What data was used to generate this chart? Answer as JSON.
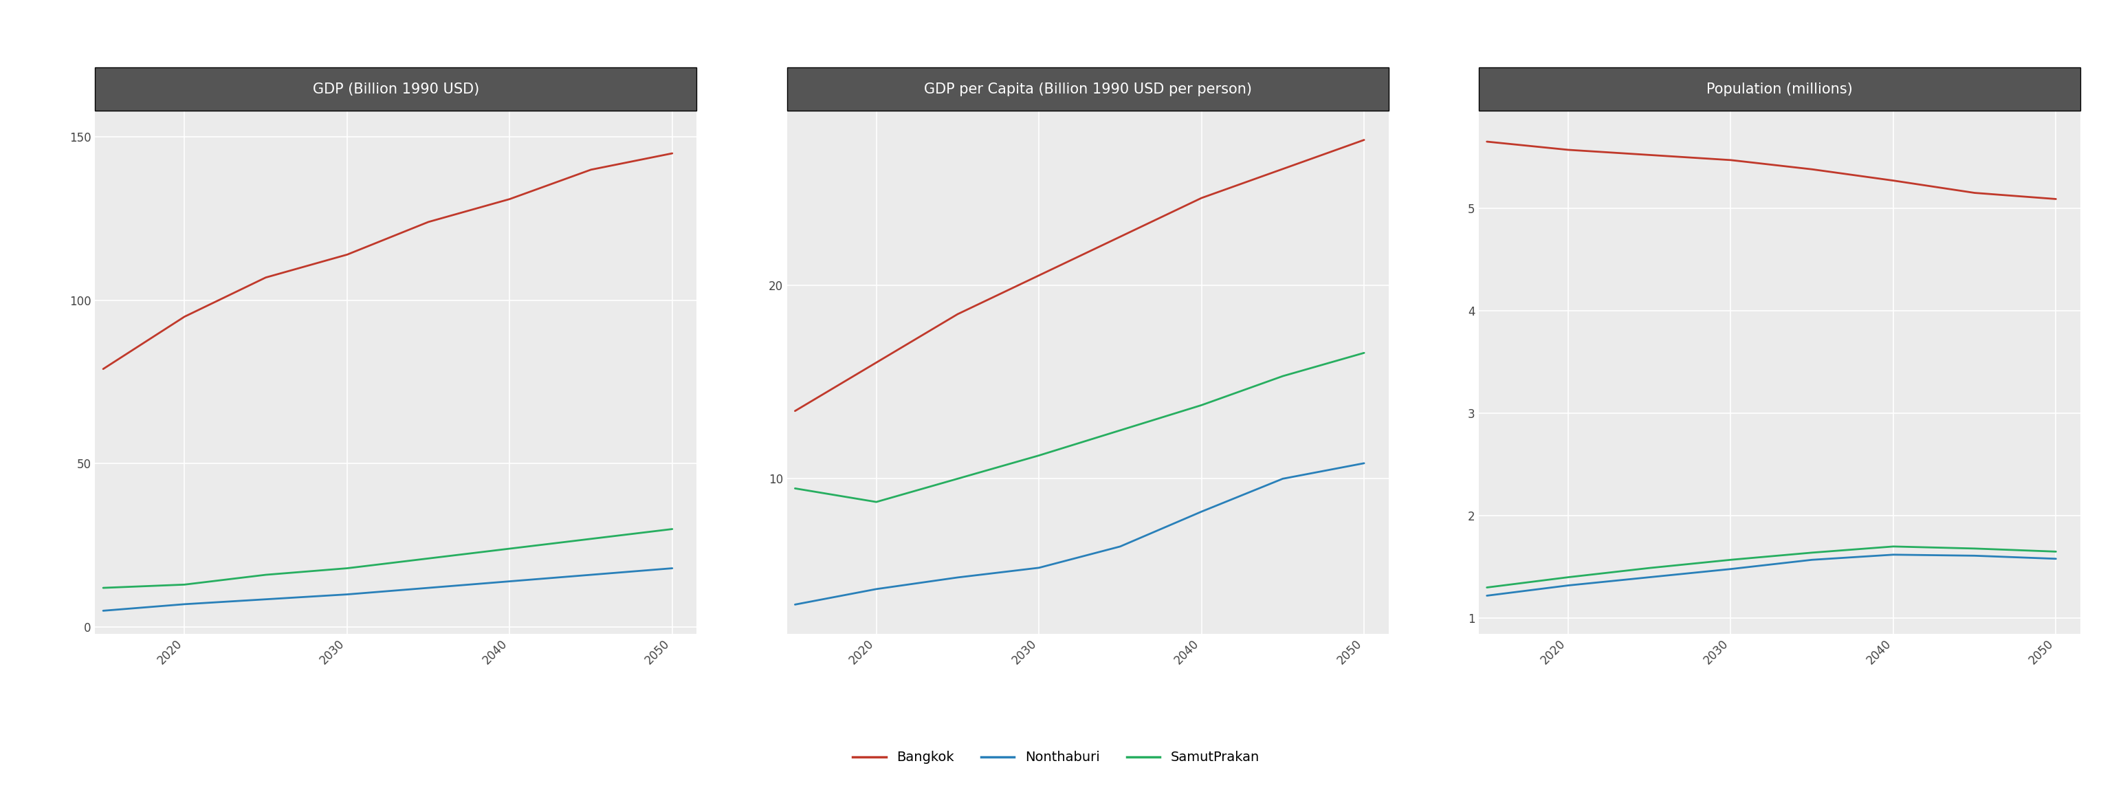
{
  "years": [
    2015,
    2020,
    2025,
    2030,
    2035,
    2040,
    2045,
    2050
  ],
  "gdp": {
    "Bangkok": [
      79,
      95,
      107,
      114,
      124,
      131,
      140,
      145
    ],
    "Nonthaburi": [
      5,
      7,
      8.5,
      10,
      12,
      14,
      16,
      18
    ],
    "SamutPrakan": [
      12,
      13,
      16,
      18,
      21,
      24,
      27,
      30
    ]
  },
  "gdp_capita": {
    "Bangkok": [
      13.5,
      16.0,
      18.5,
      20.5,
      22.5,
      24.5,
      26.0,
      27.5
    ],
    "Nonthaburi": [
      3.5,
      4.3,
      4.9,
      5.4,
      6.5,
      8.3,
      10.0,
      10.8
    ],
    "SamutPrakan": [
      9.5,
      8.8,
      10.0,
      11.2,
      12.5,
      13.8,
      15.3,
      16.5
    ]
  },
  "population": {
    "Bangkok": [
      5.65,
      5.57,
      5.52,
      5.47,
      5.38,
      5.27,
      5.15,
      5.09
    ],
    "Nonthaburi": [
      1.22,
      1.32,
      1.4,
      1.48,
      1.57,
      1.62,
      1.61,
      1.58
    ],
    "SamutPrakan": [
      1.3,
      1.4,
      1.49,
      1.57,
      1.64,
      1.7,
      1.68,
      1.65
    ]
  },
  "titles": [
    "GDP (Billion 1990 USD)",
    "GDP per Capita (Billion 1990 USD per person)",
    "Population (millions)"
  ],
  "colors": {
    "Bangkok": "#c0392b",
    "Nonthaburi": "#2980b9",
    "SamutPrakan": "#27ae60"
  },
  "header_bg": "#555555",
  "header_text": "#ffffff",
  "plot_bg": "#ebebeb",
  "grid_color": "#ffffff",
  "line_width": 2.0,
  "xticks": [
    2020,
    2030,
    2040,
    2050
  ],
  "xlim": [
    2014.5,
    2051.5
  ],
  "yticks_gdp": [
    0,
    50,
    100,
    150
  ],
  "ylim_gdp": [
    -2,
    158
  ],
  "yticks_gdpcap": [
    10,
    20
  ],
  "ylim_gdpcap": [
    2.0,
    29
  ],
  "yticks_pop": [
    1,
    2,
    3,
    4,
    5
  ],
  "ylim_pop": [
    0.85,
    5.95
  ],
  "legend_labels": [
    "Bangkok",
    "Nonthaburi",
    "SamutPrakan"
  ],
  "font_size_title": 15,
  "font_size_tick": 12,
  "font_size_legend": 14
}
